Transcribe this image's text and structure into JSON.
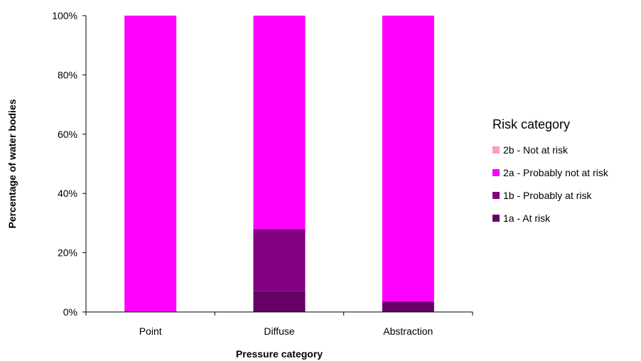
{
  "chart_data": {
    "type": "bar",
    "stacked": true,
    "percent": true,
    "xlabel": "Pressure category",
    "ylabel": "Percentage of water bodies",
    "ylim": [
      0,
      100
    ],
    "yticks": [
      "0%",
      "20%",
      "40%",
      "60%",
      "80%",
      "100%"
    ],
    "ytick_values": [
      0,
      20,
      40,
      60,
      80,
      100
    ],
    "categories": [
      "Point",
      "Diffuse",
      "Abstraction"
    ],
    "series": [
      {
        "name": "1a - At risk",
        "color": "#660066",
        "values": [
          0,
          7,
          3.5
        ]
      },
      {
        "name": "1b - Probably at risk",
        "color": "#800080",
        "values": [
          0,
          21,
          0
        ]
      },
      {
        "name": "2a - Probably not at risk",
        "color": "#ff00ff",
        "values": [
          100,
          72,
          96.5
        ]
      },
      {
        "name": "2b - Not at risk",
        "color": "#ff99cc",
        "values": [
          0,
          0,
          0
        ]
      }
    ],
    "legend_title": "Risk category",
    "legend_order": [
      "2b - Not at risk",
      "2a - Probably not at risk",
      "1b - Probably at risk",
      "1a - At risk"
    ],
    "legend_position": "right",
    "grid": false
  }
}
